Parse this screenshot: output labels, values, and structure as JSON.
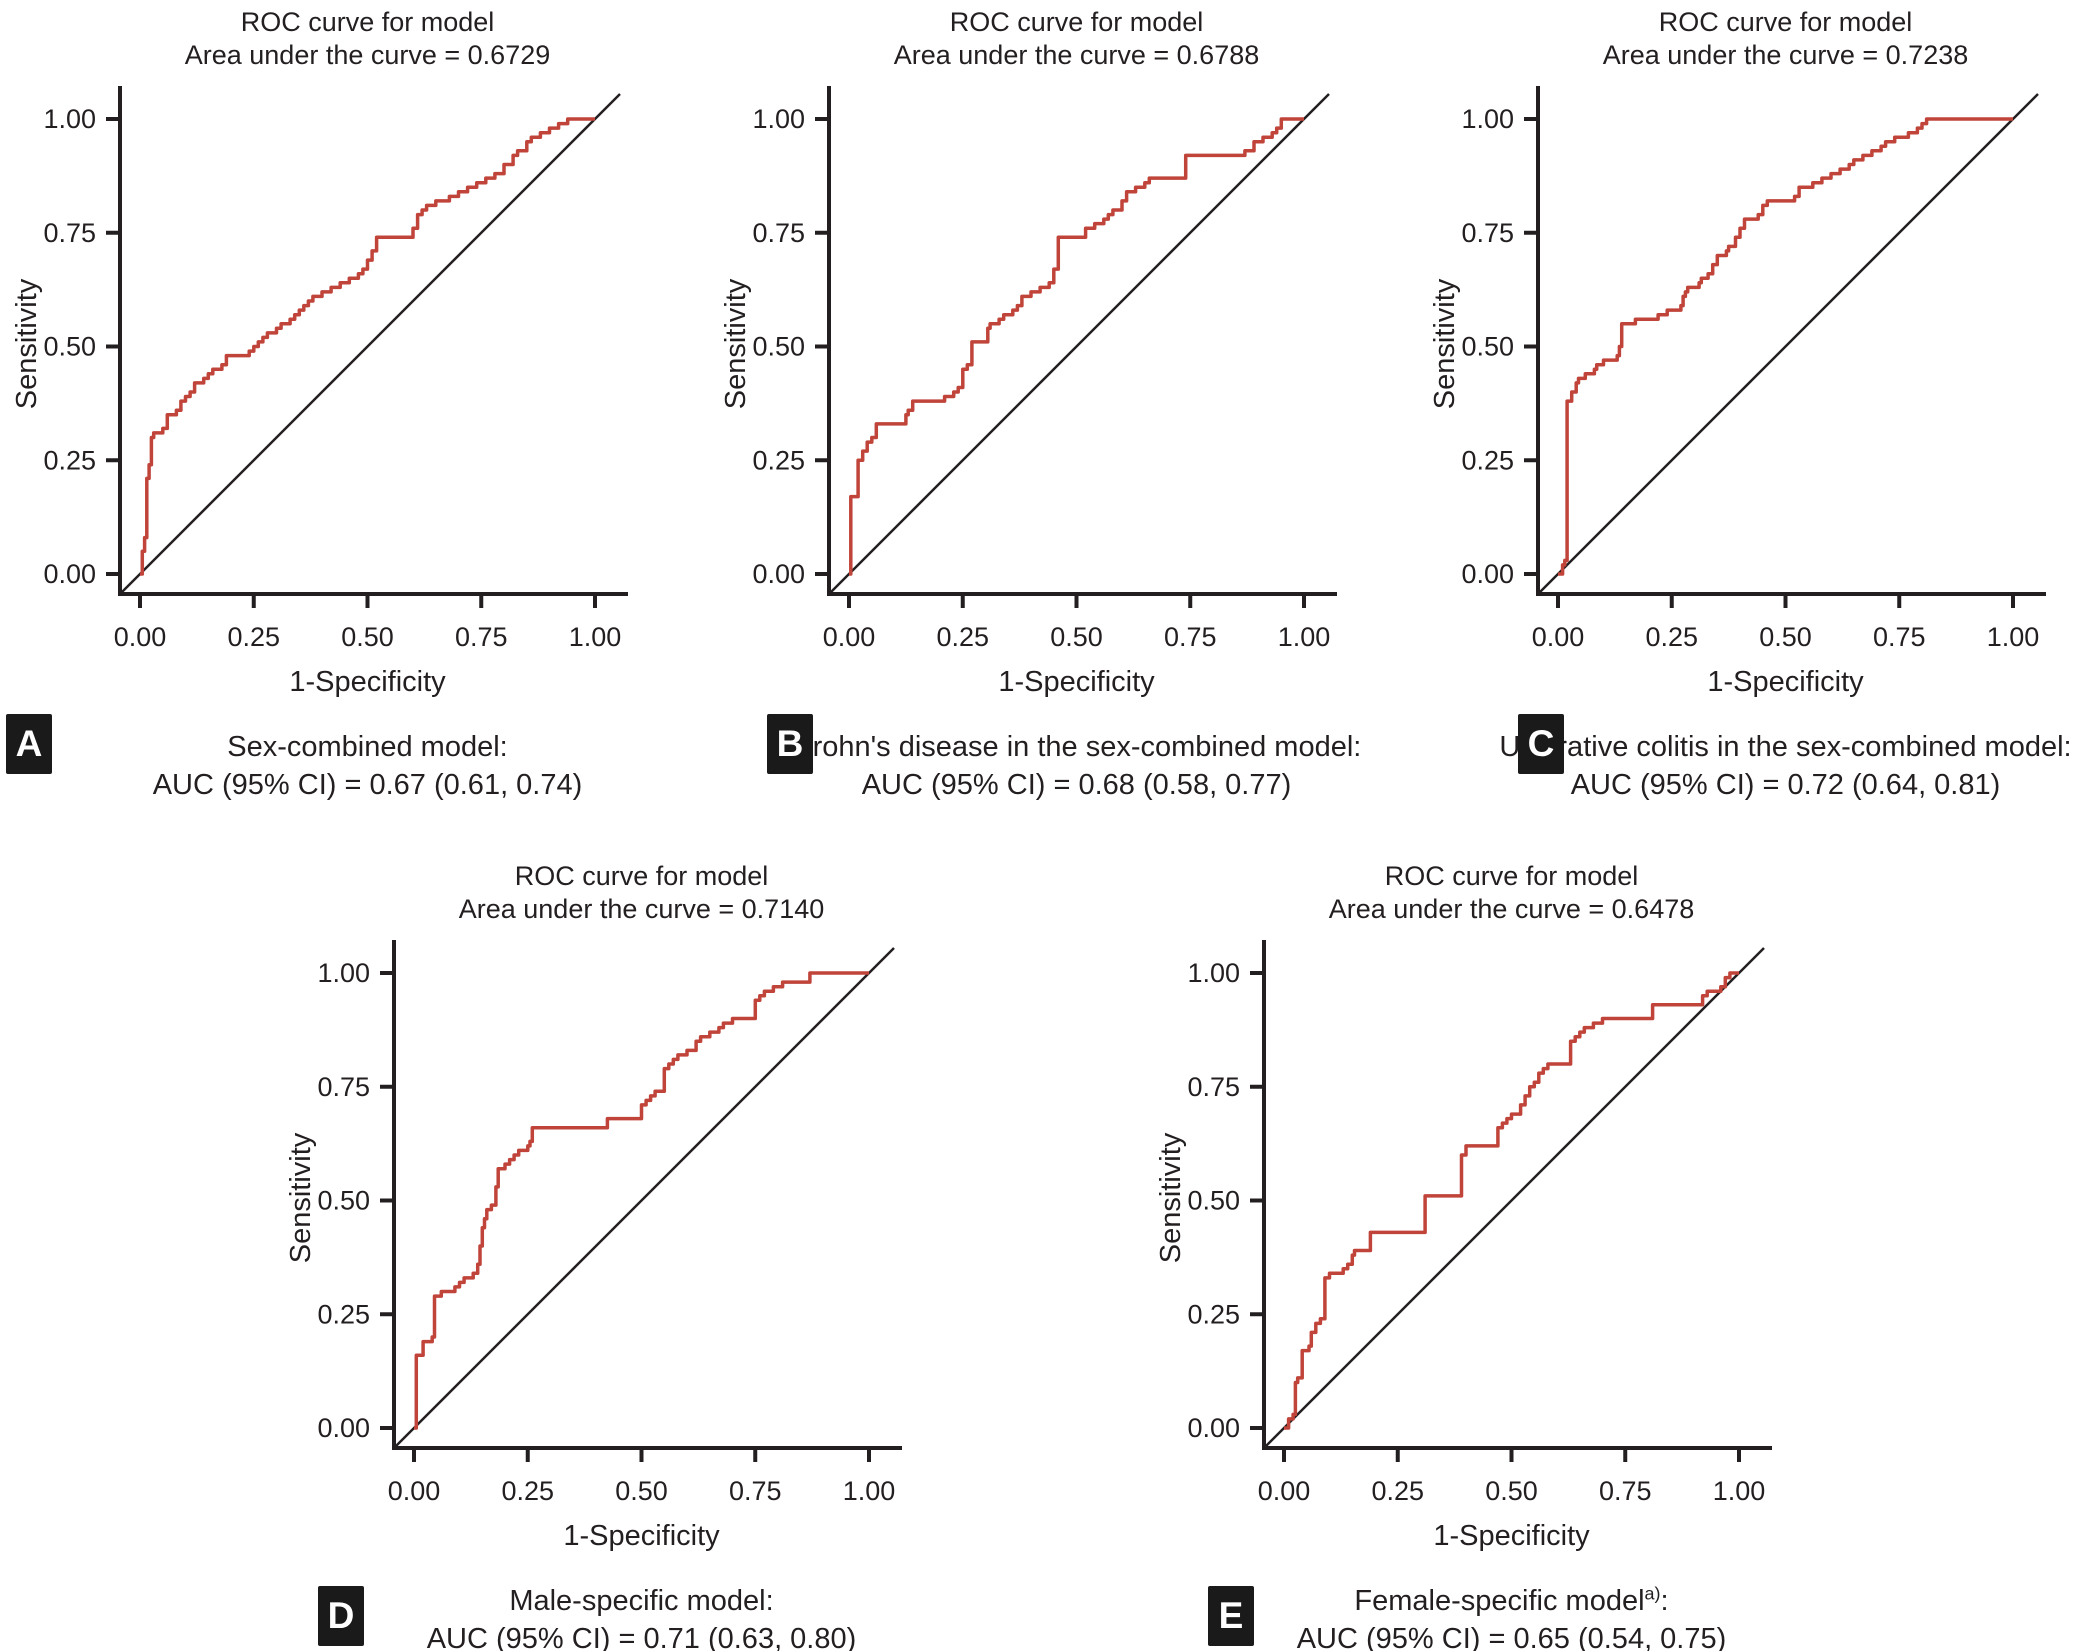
{
  "figure_background": "#ffffff",
  "curve_color": "#c0443a",
  "axis_color": "#231f20",
  "chart_data": [
    {
      "type": "line",
      "panel_label": "A",
      "title": "ROC curve for model",
      "subtitle": "Area under the curve = 0.6729",
      "auc": 0.6729,
      "caption_title": "Sex-combined model",
      "caption_sup": "",
      "caption_colon": ":",
      "caption_auc": "AUC (95% CI) = 0.67 (0.61, 0.74)",
      "xlabel": "1-Specificity",
      "ylabel": "Sensitivity",
      "xlim": [
        0,
        1
      ],
      "ylim": [
        0,
        1
      ],
      "xticks": [
        "0.00",
        "0.25",
        "0.50",
        "0.75",
        "1.00"
      ],
      "yticks": [
        "0.00",
        "0.25",
        "0.50",
        "0.75",
        "1.00"
      ],
      "reference_line": "diagonal",
      "grid": false,
      "roc_points": [
        [
          0.005,
          0.05
        ],
        [
          0.01,
          0.08
        ],
        [
          0.015,
          0.21
        ],
        [
          0.02,
          0.24
        ],
        [
          0.025,
          0.3
        ],
        [
          0.03,
          0.31
        ],
        [
          0.05,
          0.32
        ],
        [
          0.06,
          0.35
        ],
        [
          0.08,
          0.36
        ],
        [
          0.09,
          0.38
        ],
        [
          0.1,
          0.39
        ],
        [
          0.11,
          0.4
        ],
        [
          0.12,
          0.42
        ],
        [
          0.14,
          0.43
        ],
        [
          0.15,
          0.44
        ],
        [
          0.16,
          0.45
        ],
        [
          0.18,
          0.46
        ],
        [
          0.19,
          0.48
        ],
        [
          0.23,
          0.48
        ],
        [
          0.24,
          0.49
        ],
        [
          0.25,
          0.5
        ],
        [
          0.26,
          0.51
        ],
        [
          0.27,
          0.52
        ],
        [
          0.28,
          0.53
        ],
        [
          0.3,
          0.54
        ],
        [
          0.31,
          0.55
        ],
        [
          0.33,
          0.56
        ],
        [
          0.34,
          0.57
        ],
        [
          0.35,
          0.58
        ],
        [
          0.36,
          0.59
        ],
        [
          0.37,
          0.6
        ],
        [
          0.38,
          0.61
        ],
        [
          0.4,
          0.62
        ],
        [
          0.42,
          0.63
        ],
        [
          0.44,
          0.64
        ],
        [
          0.46,
          0.65
        ],
        [
          0.48,
          0.66
        ],
        [
          0.49,
          0.67
        ],
        [
          0.5,
          0.69
        ],
        [
          0.51,
          0.71
        ],
        [
          0.52,
          0.74
        ],
        [
          0.59,
          0.74
        ],
        [
          0.6,
          0.76
        ],
        [
          0.61,
          0.79
        ],
        [
          0.62,
          0.8
        ],
        [
          0.63,
          0.81
        ],
        [
          0.65,
          0.82
        ],
        [
          0.68,
          0.83
        ],
        [
          0.7,
          0.84
        ],
        [
          0.72,
          0.85
        ],
        [
          0.74,
          0.86
        ],
        [
          0.76,
          0.87
        ],
        [
          0.78,
          0.88
        ],
        [
          0.8,
          0.9
        ],
        [
          0.82,
          0.92
        ],
        [
          0.83,
          0.93
        ],
        [
          0.85,
          0.95
        ],
        [
          0.86,
          0.96
        ],
        [
          0.88,
          0.97
        ],
        [
          0.9,
          0.98
        ],
        [
          0.92,
          0.99
        ],
        [
          0.94,
          1.0
        ],
        [
          1.0,
          1.0
        ]
      ]
    },
    {
      "type": "line",
      "panel_label": "B",
      "title": "ROC curve for model",
      "subtitle": "Area under the curve = 0.6788",
      "auc": 0.6788,
      "caption_title": "Crohn's disease in the sex-combined model",
      "caption_sup": "",
      "caption_colon": ":",
      "caption_auc": "AUC (95% CI) = 0.68 (0.58, 0.77)",
      "xlabel": "1-Specificity",
      "ylabel": "Sensitivity",
      "xlim": [
        0,
        1
      ],
      "ylim": [
        0,
        1
      ],
      "xticks": [
        "0.00",
        "0.25",
        "0.50",
        "0.75",
        "1.00"
      ],
      "yticks": [
        "0.00",
        "0.25",
        "0.50",
        "0.75",
        "1.00"
      ],
      "reference_line": "diagonal",
      "grid": false,
      "roc_points": [
        [
          0.004,
          0.17
        ],
        [
          0.02,
          0.25
        ],
        [
          0.03,
          0.27
        ],
        [
          0.04,
          0.29
        ],
        [
          0.05,
          0.3
        ],
        [
          0.06,
          0.33
        ],
        [
          0.12,
          0.33
        ],
        [
          0.125,
          0.35
        ],
        [
          0.13,
          0.36
        ],
        [
          0.14,
          0.38
        ],
        [
          0.2,
          0.38
        ],
        [
          0.21,
          0.39
        ],
        [
          0.23,
          0.4
        ],
        [
          0.24,
          0.41
        ],
        [
          0.25,
          0.45
        ],
        [
          0.26,
          0.46
        ],
        [
          0.27,
          0.51
        ],
        [
          0.3,
          0.51
        ],
        [
          0.305,
          0.54
        ],
        [
          0.31,
          0.55
        ],
        [
          0.33,
          0.56
        ],
        [
          0.34,
          0.57
        ],
        [
          0.36,
          0.58
        ],
        [
          0.37,
          0.59
        ],
        [
          0.38,
          0.61
        ],
        [
          0.4,
          0.62
        ],
        [
          0.42,
          0.63
        ],
        [
          0.44,
          0.64
        ],
        [
          0.45,
          0.67
        ],
        [
          0.46,
          0.74
        ],
        [
          0.51,
          0.74
        ],
        [
          0.52,
          0.76
        ],
        [
          0.54,
          0.77
        ],
        [
          0.56,
          0.78
        ],
        [
          0.57,
          0.79
        ],
        [
          0.58,
          0.8
        ],
        [
          0.6,
          0.82
        ],
        [
          0.61,
          0.84
        ],
        [
          0.63,
          0.85
        ],
        [
          0.65,
          0.86
        ],
        [
          0.66,
          0.87
        ],
        [
          0.73,
          0.87
        ],
        [
          0.74,
          0.92
        ],
        [
          0.86,
          0.92
        ],
        [
          0.87,
          0.93
        ],
        [
          0.89,
          0.95
        ],
        [
          0.91,
          0.96
        ],
        [
          0.93,
          0.97
        ],
        [
          0.94,
          0.98
        ],
        [
          0.95,
          1.0
        ],
        [
          1.0,
          1.0
        ]
      ]
    },
    {
      "type": "line",
      "panel_label": "C",
      "title": "ROC curve for model",
      "subtitle": "Area under the curve = 0.7238",
      "auc": 0.7238,
      "caption_title": "Ulcerative colitis in the sex-combined model",
      "caption_sup": "",
      "caption_colon": ":",
      "caption_auc": "AUC (95% CI) = 0.72 (0.64, 0.81)",
      "xlabel": "1-Specificity",
      "ylabel": "Sensitivity",
      "xlim": [
        0,
        1
      ],
      "ylim": [
        0,
        1
      ],
      "xticks": [
        "0.00",
        "0.25",
        "0.50",
        "0.75",
        "1.00"
      ],
      "yticks": [
        "0.00",
        "0.25",
        "0.50",
        "0.75",
        "1.00"
      ],
      "reference_line": "diagonal",
      "grid": false,
      "roc_points": [
        [
          0.01,
          0.02
        ],
        [
          0.015,
          0.03
        ],
        [
          0.02,
          0.38
        ],
        [
          0.03,
          0.4
        ],
        [
          0.04,
          0.42
        ],
        [
          0.045,
          0.43
        ],
        [
          0.06,
          0.44
        ],
        [
          0.08,
          0.45
        ],
        [
          0.085,
          0.46
        ],
        [
          0.1,
          0.47
        ],
        [
          0.13,
          0.48
        ],
        [
          0.135,
          0.5
        ],
        [
          0.14,
          0.55
        ],
        [
          0.17,
          0.56
        ],
        [
          0.22,
          0.57
        ],
        [
          0.24,
          0.58
        ],
        [
          0.27,
          0.59
        ],
        [
          0.275,
          0.61
        ],
        [
          0.28,
          0.62
        ],
        [
          0.285,
          0.63
        ],
        [
          0.31,
          0.64
        ],
        [
          0.315,
          0.65
        ],
        [
          0.33,
          0.66
        ],
        [
          0.34,
          0.68
        ],
        [
          0.35,
          0.7
        ],
        [
          0.37,
          0.71
        ],
        [
          0.375,
          0.72
        ],
        [
          0.39,
          0.74
        ],
        [
          0.4,
          0.76
        ],
        [
          0.41,
          0.78
        ],
        [
          0.44,
          0.79
        ],
        [
          0.45,
          0.81
        ],
        [
          0.46,
          0.82
        ],
        [
          0.52,
          0.83
        ],
        [
          0.53,
          0.85
        ],
        [
          0.56,
          0.86
        ],
        [
          0.58,
          0.87
        ],
        [
          0.6,
          0.88
        ],
        [
          0.62,
          0.89
        ],
        [
          0.64,
          0.9
        ],
        [
          0.65,
          0.91
        ],
        [
          0.67,
          0.92
        ],
        [
          0.69,
          0.93
        ],
        [
          0.71,
          0.94
        ],
        [
          0.72,
          0.95
        ],
        [
          0.74,
          0.96
        ],
        [
          0.77,
          0.97
        ],
        [
          0.79,
          0.98
        ],
        [
          0.8,
          0.99
        ],
        [
          0.81,
          1.0
        ],
        [
          1.0,
          1.0
        ]
      ]
    },
    {
      "type": "line",
      "panel_label": "D",
      "title": "ROC curve for model",
      "subtitle": "Area under the curve = 0.7140",
      "auc": 0.714,
      "caption_title": "Male-specific model",
      "caption_sup": "",
      "caption_colon": ":",
      "caption_auc": "AUC (95% CI) = 0.71 (0.63, 0.80)",
      "xlabel": "1-Specificity",
      "ylabel": "Sensitivity",
      "xlim": [
        0,
        1
      ],
      "ylim": [
        0,
        1
      ],
      "xticks": [
        "0.00",
        "0.25",
        "0.50",
        "0.75",
        "1.00"
      ],
      "yticks": [
        "0.00",
        "0.25",
        "0.50",
        "0.75",
        "1.00"
      ],
      "reference_line": "diagonal",
      "grid": false,
      "roc_points": [
        [
          0.005,
          0.16
        ],
        [
          0.02,
          0.19
        ],
        [
          0.04,
          0.2
        ],
        [
          0.045,
          0.29
        ],
        [
          0.06,
          0.3
        ],
        [
          0.09,
          0.31
        ],
        [
          0.1,
          0.32
        ],
        [
          0.11,
          0.33
        ],
        [
          0.13,
          0.34
        ],
        [
          0.14,
          0.36
        ],
        [
          0.145,
          0.4
        ],
        [
          0.15,
          0.44
        ],
        [
          0.155,
          0.46
        ],
        [
          0.16,
          0.48
        ],
        [
          0.17,
          0.49
        ],
        [
          0.18,
          0.53
        ],
        [
          0.185,
          0.57
        ],
        [
          0.2,
          0.58
        ],
        [
          0.21,
          0.59
        ],
        [
          0.22,
          0.6
        ],
        [
          0.23,
          0.61
        ],
        [
          0.25,
          0.62
        ],
        [
          0.255,
          0.63
        ],
        [
          0.26,
          0.66
        ],
        [
          0.42,
          0.66
        ],
        [
          0.425,
          0.68
        ],
        [
          0.49,
          0.68
        ],
        [
          0.5,
          0.71
        ],
        [
          0.51,
          0.72
        ],
        [
          0.52,
          0.73
        ],
        [
          0.53,
          0.74
        ],
        [
          0.55,
          0.79
        ],
        [
          0.56,
          0.8
        ],
        [
          0.57,
          0.81
        ],
        [
          0.58,
          0.82
        ],
        [
          0.6,
          0.83
        ],
        [
          0.62,
          0.85
        ],
        [
          0.63,
          0.86
        ],
        [
          0.65,
          0.87
        ],
        [
          0.67,
          0.88
        ],
        [
          0.68,
          0.89
        ],
        [
          0.7,
          0.9
        ],
        [
          0.74,
          0.9
        ],
        [
          0.75,
          0.94
        ],
        [
          0.76,
          0.95
        ],
        [
          0.77,
          0.96
        ],
        [
          0.79,
          0.97
        ],
        [
          0.81,
          0.98
        ],
        [
          0.86,
          0.98
        ],
        [
          0.87,
          1.0
        ],
        [
          1.0,
          1.0
        ]
      ]
    },
    {
      "type": "line",
      "panel_label": "E",
      "title": "ROC curve for model",
      "subtitle": "Area under the curve = 0.6478",
      "auc": 0.6478,
      "caption_title": "Female-specific model",
      "caption_sup": "a)",
      "caption_colon": ":",
      "caption_auc": "AUC (95% CI) = 0.65 (0.54, 0.75)",
      "xlabel": "1-Specificity",
      "ylabel": "Sensitivity",
      "xlim": [
        0,
        1
      ],
      "ylim": [
        0,
        1
      ],
      "xticks": [
        "0.00",
        "0.25",
        "0.50",
        "0.75",
        "1.00"
      ],
      "yticks": [
        "0.00",
        "0.25",
        "0.50",
        "0.75",
        "1.00"
      ],
      "reference_line": "diagonal",
      "grid": false,
      "roc_points": [
        [
          0.01,
          0.02
        ],
        [
          0.02,
          0.03
        ],
        [
          0.025,
          0.1
        ],
        [
          0.03,
          0.11
        ],
        [
          0.04,
          0.17
        ],
        [
          0.055,
          0.18
        ],
        [
          0.06,
          0.21
        ],
        [
          0.07,
          0.23
        ],
        [
          0.08,
          0.24
        ],
        [
          0.09,
          0.33
        ],
        [
          0.1,
          0.34
        ],
        [
          0.13,
          0.35
        ],
        [
          0.14,
          0.36
        ],
        [
          0.15,
          0.38
        ],
        [
          0.155,
          0.39
        ],
        [
          0.19,
          0.43
        ],
        [
          0.3,
          0.43
        ],
        [
          0.31,
          0.51
        ],
        [
          0.38,
          0.51
        ],
        [
          0.39,
          0.6
        ],
        [
          0.4,
          0.62
        ],
        [
          0.46,
          0.62
        ],
        [
          0.47,
          0.66
        ],
        [
          0.48,
          0.67
        ],
        [
          0.49,
          0.68
        ],
        [
          0.5,
          0.69
        ],
        [
          0.52,
          0.71
        ],
        [
          0.53,
          0.73
        ],
        [
          0.54,
          0.75
        ],
        [
          0.55,
          0.76
        ],
        [
          0.56,
          0.78
        ],
        [
          0.57,
          0.79
        ],
        [
          0.58,
          0.8
        ],
        [
          0.62,
          0.8
        ],
        [
          0.63,
          0.85
        ],
        [
          0.64,
          0.86
        ],
        [
          0.65,
          0.87
        ],
        [
          0.66,
          0.88
        ],
        [
          0.68,
          0.89
        ],
        [
          0.7,
          0.9
        ],
        [
          0.8,
          0.9
        ],
        [
          0.81,
          0.93
        ],
        [
          0.9,
          0.93
        ],
        [
          0.92,
          0.95
        ],
        [
          0.93,
          0.96
        ],
        [
          0.96,
          0.97
        ],
        [
          0.97,
          0.99
        ],
        [
          0.98,
          1.0
        ],
        [
          1.0,
          1.0
        ]
      ]
    }
  ]
}
